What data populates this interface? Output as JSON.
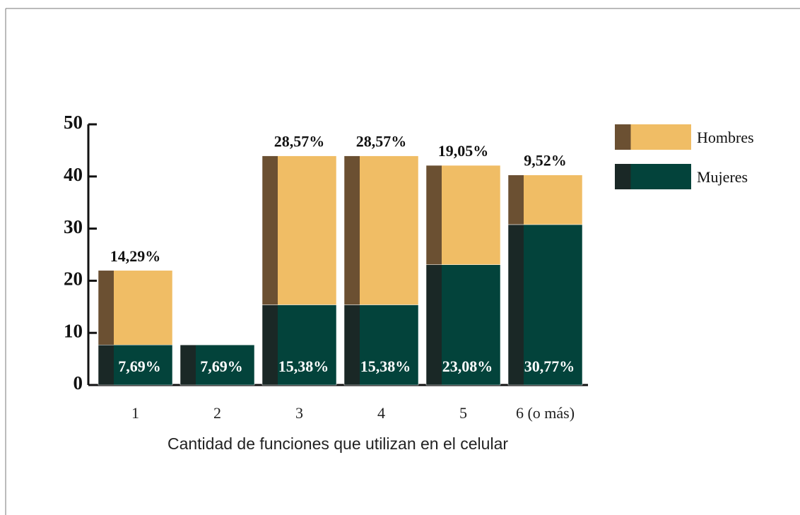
{
  "chart_data": {
    "type": "stacked_bar",
    "x_label": "Cantidad de funciones que utilizan en el celular",
    "categories": [
      "1",
      "2",
      "3",
      "4",
      "5",
      "6 (o más)"
    ],
    "series": [
      {
        "name": "Mujeres",
        "color": "#03433b",
        "shade": "#1a2826",
        "values": [
          7.69,
          7.69,
          15.38,
          15.38,
          23.08,
          30.77
        ],
        "value_labels": [
          "7,69%",
          "7,69%",
          "15,38%",
          "15,38%",
          "23,08%",
          "30,77%"
        ]
      },
      {
        "name": "Hombres",
        "color": "#f0bd65",
        "shade": "#6b5032",
        "values": [
          14.29,
          0,
          28.57,
          28.57,
          19.05,
          9.52
        ],
        "value_labels": [
          "14,29%",
          null,
          "28,57%",
          "28,57%",
          "19,05%",
          "9,52%"
        ]
      }
    ],
    "ylim": [
      0,
      50
    ],
    "yticks": [
      0,
      10,
      20,
      30,
      40,
      50
    ]
  }
}
